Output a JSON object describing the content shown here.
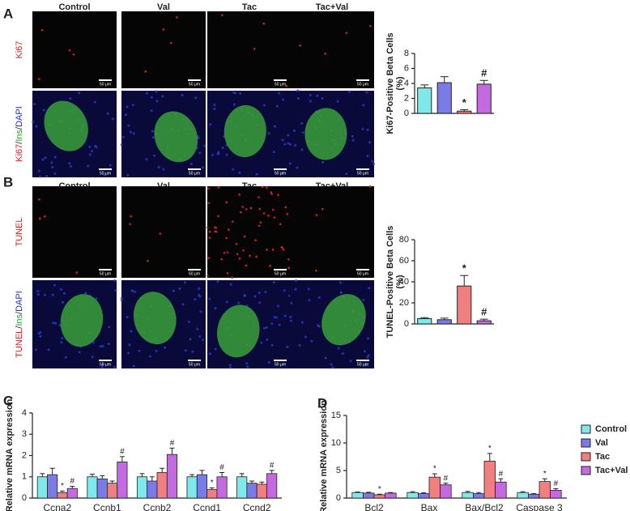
{
  "image_panels": [
    {
      "label": "A",
      "columns": [
        "Control",
        "Val",
        "Tac",
        "Tac+Val"
      ],
      "stain_label": "Ki67",
      "merge_label": [
        "Ki67",
        "/",
        "Ins",
        "/",
        "DAPI"
      ]
    },
    {
      "label": "B",
      "columns": [
        "Control",
        "Val",
        "Tac",
        "Tac+Val"
      ],
      "stain_label": "TUNEL",
      "merge_label": [
        "TUNEL",
        "/",
        "Ins",
        "/",
        "DAPI"
      ]
    }
  ],
  "scale_bar_label": "50 μm",
  "chart_data": [
    {
      "type": "bar",
      "ylabel": [
        "Ki67-Positive Beta Cells",
        "(%)"
      ],
      "values": [
        3.4,
        4.1,
        0.3,
        3.9
      ],
      "errors": [
        0.4,
        0.8,
        0.2,
        0.5
      ],
      "colors": [
        "#7fe8e8",
        "#7b7be8",
        "#f08080",
        "#c46ae0"
      ],
      "annotations": [
        null,
        null,
        "*",
        "#"
      ],
      "ylim": [
        0,
        8
      ],
      "yticks": [
        0,
        2,
        4,
        6,
        8
      ]
    },
    {
      "type": "bar",
      "ylabel": [
        "TUNEL-Positive Beta Cells",
        "(%)"
      ],
      "values": [
        5,
        4,
        36,
        3
      ],
      "errors": [
        1,
        1.5,
        10,
        1.5
      ],
      "colors": [
        "#7fe8e8",
        "#7b7be8",
        "#f08080",
        "#c46ae0"
      ],
      "annotations": [
        null,
        null,
        "*",
        "#"
      ],
      "ylim": [
        0,
        80
      ],
      "yticks": [
        0,
        20,
        40,
        60,
        80
      ]
    },
    {
      "type": "grouped-bar",
      "panel_label": "C",
      "ylabel": "Relative mRNA expression",
      "categories": [
        "Ccna2",
        "Ccnb1",
        "Ccnb2",
        "Ccnd1",
        "Ccnd2"
      ],
      "series": [
        {
          "name": "Control",
          "color": "#7fe8e8",
          "values": [
            1.0,
            1.0,
            1.0,
            1.0,
            1.0
          ],
          "errors": [
            0.15,
            0.12,
            0.15,
            0.1,
            0.15
          ],
          "annotations": [
            null,
            null,
            null,
            null,
            null
          ]
        },
        {
          "name": "Val",
          "color": "#7b7be8",
          "values": [
            1.1,
            0.9,
            0.8,
            1.1,
            0.7
          ],
          "errors": [
            0.3,
            0.15,
            0.2,
            0.2,
            0.1
          ],
          "annotations": [
            null,
            null,
            null,
            null,
            null
          ]
        },
        {
          "name": "Tac",
          "color": "#f08080",
          "values": [
            0.25,
            0.7,
            1.2,
            0.4,
            0.65
          ],
          "errors": [
            0.08,
            0.1,
            0.2,
            0.08,
            0.1
          ],
          "annotations": [
            "*",
            null,
            null,
            "*",
            null
          ]
        },
        {
          "name": "Tac+Val",
          "color": "#c46ae0",
          "values": [
            0.45,
            1.7,
            2.05,
            1.0,
            1.15
          ],
          "errors": [
            0.1,
            0.25,
            0.3,
            0.2,
            0.15
          ],
          "annotations": [
            "#",
            "#",
            "#",
            "#",
            "#"
          ]
        }
      ],
      "ylim": [
        0,
        4
      ],
      "yticks": [
        0,
        1,
        2,
        3,
        4
      ]
    },
    {
      "type": "grouped-bar",
      "panel_label": "D",
      "ylabel": "Relative mRNA expression",
      "categories": [
        "Bcl2",
        "Bax",
        "Bax/Bcl2",
        "Caspase 3"
      ],
      "series": [
        {
          "name": "Control",
          "color": "#7fe8e8",
          "values": [
            1.0,
            1.0,
            1.0,
            1.0
          ],
          "errors": [
            0.1,
            0.15,
            0.2,
            0.15
          ],
          "annotations": [
            null,
            null,
            null,
            null
          ]
        },
        {
          "name": "Val",
          "color": "#7b7be8",
          "values": [
            0.9,
            0.8,
            0.8,
            0.7
          ],
          "errors": [
            0.15,
            0.15,
            0.2,
            0.1
          ],
          "annotations": [
            null,
            null,
            null,
            null
          ]
        },
        {
          "name": "Tac",
          "color": "#f08080",
          "values": [
            0.6,
            3.8,
            6.7,
            3.0
          ],
          "errors": [
            0.1,
            0.6,
            1.4,
            0.5
          ],
          "annotations": [
            "*",
            "*",
            "*",
            "*"
          ]
        },
        {
          "name": "Tac+Val",
          "color": "#c46ae0",
          "values": [
            0.9,
            2.4,
            2.9,
            1.4
          ],
          "errors": [
            0.1,
            0.3,
            0.6,
            0.3
          ],
          "annotations": [
            null,
            "#",
            "#",
            "#"
          ]
        }
      ],
      "ylim": [
        0,
        15
      ],
      "yticks": [
        0,
        5,
        10,
        15
      ],
      "legend": "right"
    }
  ]
}
